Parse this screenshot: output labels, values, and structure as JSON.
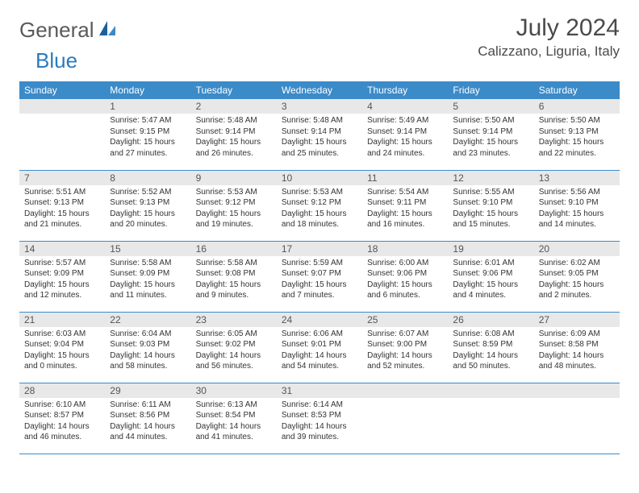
{
  "logo": {
    "part1": "General",
    "part2": "Blue"
  },
  "title": "July 2024",
  "location": "Calizzano, Liguria, Italy",
  "theme": {
    "header_bg": "#3b8bc9",
    "header_text": "#ffffff",
    "daynum_bg": "#e8e8e8",
    "border": "#3b8bc9",
    "body_text": "#333333"
  },
  "day_headers": [
    "Sunday",
    "Monday",
    "Tuesday",
    "Wednesday",
    "Thursday",
    "Friday",
    "Saturday"
  ],
  "weeks": [
    [
      {
        "num": "",
        "sunrise": "",
        "sunset": "",
        "daylight": ""
      },
      {
        "num": "1",
        "sunrise": "Sunrise: 5:47 AM",
        "sunset": "Sunset: 9:15 PM",
        "daylight": "Daylight: 15 hours and 27 minutes."
      },
      {
        "num": "2",
        "sunrise": "Sunrise: 5:48 AM",
        "sunset": "Sunset: 9:14 PM",
        "daylight": "Daylight: 15 hours and 26 minutes."
      },
      {
        "num": "3",
        "sunrise": "Sunrise: 5:48 AM",
        "sunset": "Sunset: 9:14 PM",
        "daylight": "Daylight: 15 hours and 25 minutes."
      },
      {
        "num": "4",
        "sunrise": "Sunrise: 5:49 AM",
        "sunset": "Sunset: 9:14 PM",
        "daylight": "Daylight: 15 hours and 24 minutes."
      },
      {
        "num": "5",
        "sunrise": "Sunrise: 5:50 AM",
        "sunset": "Sunset: 9:14 PM",
        "daylight": "Daylight: 15 hours and 23 minutes."
      },
      {
        "num": "6",
        "sunrise": "Sunrise: 5:50 AM",
        "sunset": "Sunset: 9:13 PM",
        "daylight": "Daylight: 15 hours and 22 minutes."
      }
    ],
    [
      {
        "num": "7",
        "sunrise": "Sunrise: 5:51 AM",
        "sunset": "Sunset: 9:13 PM",
        "daylight": "Daylight: 15 hours and 21 minutes."
      },
      {
        "num": "8",
        "sunrise": "Sunrise: 5:52 AM",
        "sunset": "Sunset: 9:13 PM",
        "daylight": "Daylight: 15 hours and 20 minutes."
      },
      {
        "num": "9",
        "sunrise": "Sunrise: 5:53 AM",
        "sunset": "Sunset: 9:12 PM",
        "daylight": "Daylight: 15 hours and 19 minutes."
      },
      {
        "num": "10",
        "sunrise": "Sunrise: 5:53 AM",
        "sunset": "Sunset: 9:12 PM",
        "daylight": "Daylight: 15 hours and 18 minutes."
      },
      {
        "num": "11",
        "sunrise": "Sunrise: 5:54 AM",
        "sunset": "Sunset: 9:11 PM",
        "daylight": "Daylight: 15 hours and 16 minutes."
      },
      {
        "num": "12",
        "sunrise": "Sunrise: 5:55 AM",
        "sunset": "Sunset: 9:10 PM",
        "daylight": "Daylight: 15 hours and 15 minutes."
      },
      {
        "num": "13",
        "sunrise": "Sunrise: 5:56 AM",
        "sunset": "Sunset: 9:10 PM",
        "daylight": "Daylight: 15 hours and 14 minutes."
      }
    ],
    [
      {
        "num": "14",
        "sunrise": "Sunrise: 5:57 AM",
        "sunset": "Sunset: 9:09 PM",
        "daylight": "Daylight: 15 hours and 12 minutes."
      },
      {
        "num": "15",
        "sunrise": "Sunrise: 5:58 AM",
        "sunset": "Sunset: 9:09 PM",
        "daylight": "Daylight: 15 hours and 11 minutes."
      },
      {
        "num": "16",
        "sunrise": "Sunrise: 5:58 AM",
        "sunset": "Sunset: 9:08 PM",
        "daylight": "Daylight: 15 hours and 9 minutes."
      },
      {
        "num": "17",
        "sunrise": "Sunrise: 5:59 AM",
        "sunset": "Sunset: 9:07 PM",
        "daylight": "Daylight: 15 hours and 7 minutes."
      },
      {
        "num": "18",
        "sunrise": "Sunrise: 6:00 AM",
        "sunset": "Sunset: 9:06 PM",
        "daylight": "Daylight: 15 hours and 6 minutes."
      },
      {
        "num": "19",
        "sunrise": "Sunrise: 6:01 AM",
        "sunset": "Sunset: 9:06 PM",
        "daylight": "Daylight: 15 hours and 4 minutes."
      },
      {
        "num": "20",
        "sunrise": "Sunrise: 6:02 AM",
        "sunset": "Sunset: 9:05 PM",
        "daylight": "Daylight: 15 hours and 2 minutes."
      }
    ],
    [
      {
        "num": "21",
        "sunrise": "Sunrise: 6:03 AM",
        "sunset": "Sunset: 9:04 PM",
        "daylight": "Daylight: 15 hours and 0 minutes."
      },
      {
        "num": "22",
        "sunrise": "Sunrise: 6:04 AM",
        "sunset": "Sunset: 9:03 PM",
        "daylight": "Daylight: 14 hours and 58 minutes."
      },
      {
        "num": "23",
        "sunrise": "Sunrise: 6:05 AM",
        "sunset": "Sunset: 9:02 PM",
        "daylight": "Daylight: 14 hours and 56 minutes."
      },
      {
        "num": "24",
        "sunrise": "Sunrise: 6:06 AM",
        "sunset": "Sunset: 9:01 PM",
        "daylight": "Daylight: 14 hours and 54 minutes."
      },
      {
        "num": "25",
        "sunrise": "Sunrise: 6:07 AM",
        "sunset": "Sunset: 9:00 PM",
        "daylight": "Daylight: 14 hours and 52 minutes."
      },
      {
        "num": "26",
        "sunrise": "Sunrise: 6:08 AM",
        "sunset": "Sunset: 8:59 PM",
        "daylight": "Daylight: 14 hours and 50 minutes."
      },
      {
        "num": "27",
        "sunrise": "Sunrise: 6:09 AM",
        "sunset": "Sunset: 8:58 PM",
        "daylight": "Daylight: 14 hours and 48 minutes."
      }
    ],
    [
      {
        "num": "28",
        "sunrise": "Sunrise: 6:10 AM",
        "sunset": "Sunset: 8:57 PM",
        "daylight": "Daylight: 14 hours and 46 minutes."
      },
      {
        "num": "29",
        "sunrise": "Sunrise: 6:11 AM",
        "sunset": "Sunset: 8:56 PM",
        "daylight": "Daylight: 14 hours and 44 minutes."
      },
      {
        "num": "30",
        "sunrise": "Sunrise: 6:13 AM",
        "sunset": "Sunset: 8:54 PM",
        "daylight": "Daylight: 14 hours and 41 minutes."
      },
      {
        "num": "31",
        "sunrise": "Sunrise: 6:14 AM",
        "sunset": "Sunset: 8:53 PM",
        "daylight": "Daylight: 14 hours and 39 minutes."
      },
      {
        "num": "",
        "sunrise": "",
        "sunset": "",
        "daylight": ""
      },
      {
        "num": "",
        "sunrise": "",
        "sunset": "",
        "daylight": ""
      },
      {
        "num": "",
        "sunrise": "",
        "sunset": "",
        "daylight": ""
      }
    ]
  ]
}
